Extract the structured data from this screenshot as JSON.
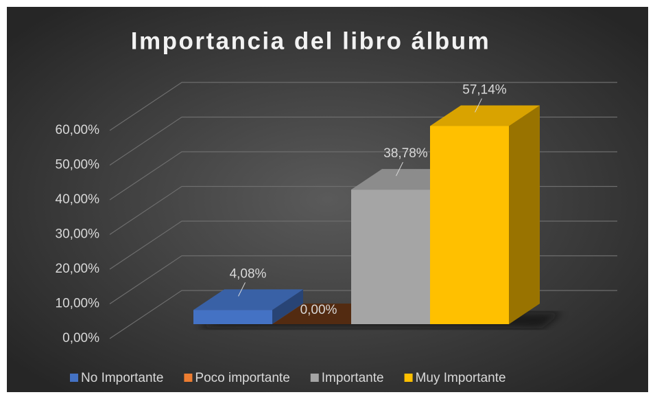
{
  "chart_data": {
    "type": "bar3d",
    "title": "Importancia del libro álbum",
    "series": [
      {
        "name": "No Importante",
        "color": "#4472c4",
        "values": [
          4.08
        ],
        "value_labels": [
          "4,08%"
        ]
      },
      {
        "name": "Poco importante",
        "color": "#ed7d31",
        "values": [
          0
        ],
        "value_labels": [
          "0,00%"
        ]
      },
      {
        "name": "Importante",
        "color": "#a5a5a5",
        "values": [
          38.78
        ],
        "value_labels": [
          "38,78%"
        ]
      },
      {
        "name": "Muy Importante",
        "color": "#ffc000",
        "values": [
          57.14
        ],
        "value_labels": [
          "57,14%"
        ]
      }
    ],
    "ylim": [
      0,
      60
    ],
    "yticks": [
      {
        "value": 0,
        "label": "0,00%"
      },
      {
        "value": 10,
        "label": "10,00%"
      },
      {
        "value": 20,
        "label": "20,00%"
      },
      {
        "value": 30,
        "label": "30,00%"
      },
      {
        "value": 40,
        "label": "40,00%"
      },
      {
        "value": 50,
        "label": "50,00%"
      },
      {
        "value": 60,
        "label": "60,00%"
      }
    ],
    "grid": true,
    "legend": "bottom"
  }
}
